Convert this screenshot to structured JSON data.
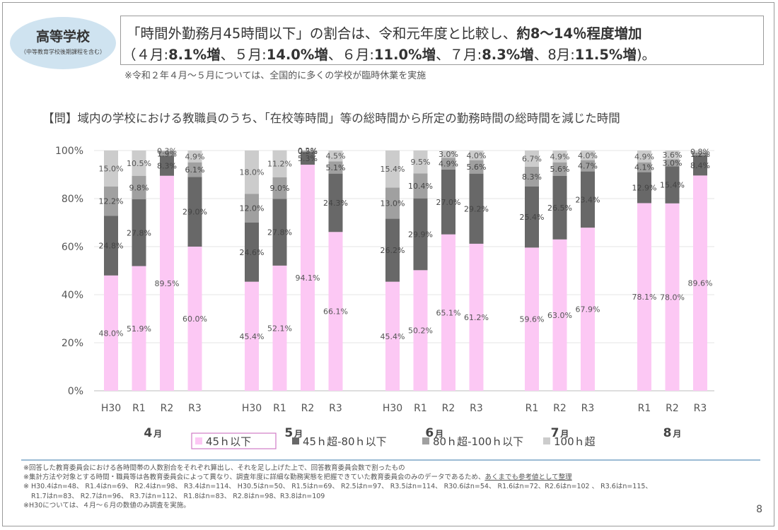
{
  "header": {
    "school": "高等学校",
    "school_sub": "（中等教育学校後期課程を含む）",
    "line1_part1": "「時間外勤務月45時間以下」の割合は、令和元年度と比較し、",
    "line1_part2": "約8～14％程度増加",
    "line2_parts": [
      {
        "text": "（４月:",
        "bold": false
      },
      {
        "text": "8.1%増",
        "bold": true
      },
      {
        "text": "、５月:",
        "bold": false
      },
      {
        "text": "14.0%増",
        "bold": true
      },
      {
        "text": "、６月:",
        "bold": false
      },
      {
        "text": "11.0%増",
        "bold": true
      },
      {
        "text": "、７月:",
        "bold": false
      },
      {
        "text": "8.3%増",
        "bold": true
      },
      {
        "text": "、8月:",
        "bold": false
      },
      {
        "text": "11.5%増",
        "bold": true
      },
      {
        "text": ")。",
        "bold": false
      }
    ],
    "note": "※令和２年４月～５月については、全国的に多くの学校が臨時休業を実施"
  },
  "question": "【問】域内の学校における教職員のうち、「在校等時間」等の総時間から所定の勤務時間の総時間を減じた時間",
  "chart_data": {
    "type": "bar",
    "stacked": true,
    "y_axis": {
      "min": 0,
      "max": 100,
      "ticks": [
        "0%",
        "20%",
        "40%",
        "60%",
        "80%",
        "100%"
      ]
    },
    "colors": [
      "#fcc8f4",
      "#686868",
      "#a0a0a0",
      "#cccccc"
    ],
    "series_names": [
      "45ｈ以下",
      "45ｈ超-80ｈ以下",
      "80ｈ超-100ｈ以下",
      "100ｈ超"
    ],
    "groups": [
      {
        "month": "4",
        "bars": [
          {
            "label": "H30",
            "values": [
              48.0,
              24.8,
              12.2,
              15.0
            ]
          },
          {
            "label": "R1",
            "values": [
              51.9,
              27.8,
              9.8,
              10.5
            ]
          },
          {
            "label": "R2",
            "values": [
              89.5,
              8.3,
              1.9,
              0.3
            ]
          },
          {
            "label": "R3",
            "values": [
              60.0,
              29.0,
              6.1,
              4.9
            ]
          }
        ]
      },
      {
        "month": "5",
        "bars": [
          {
            "label": "H30",
            "values": [
              45.4,
              24.6,
              12.0,
              18.0
            ]
          },
          {
            "label": "R1",
            "values": [
              52.1,
              27.8,
              9.0,
              11.2
            ]
          },
          {
            "label": "R2",
            "values": [
              94.1,
              5.3,
              0.5,
              0.2
            ]
          },
          {
            "label": "R3",
            "values": [
              66.1,
              24.3,
              5.1,
              4.5
            ]
          }
        ]
      },
      {
        "month": "6",
        "bars": [
          {
            "label": "H30",
            "values": [
              45.4,
              26.2,
              13.0,
              15.4
            ]
          },
          {
            "label": "R1",
            "values": [
              50.2,
              29.9,
              10.4,
              9.5
            ]
          },
          {
            "label": "R2",
            "values": [
              65.1,
              27.0,
              4.9,
              3.0
            ]
          },
          {
            "label": "R3",
            "values": [
              61.2,
              29.2,
              5.6,
              4.0
            ]
          }
        ]
      },
      {
        "month": "7",
        "bars": [
          {
            "label": "R1",
            "values": [
              59.6,
              25.4,
              8.3,
              6.7
            ]
          },
          {
            "label": "R2",
            "values": [
              63.0,
              26.5,
              5.6,
              4.9
            ]
          },
          {
            "label": "R3",
            "values": [
              67.9,
              23.4,
              4.7,
              4.0
            ]
          }
        ]
      },
      {
        "month": "8",
        "bars": [
          {
            "label": "R1",
            "values": [
              78.1,
              12.9,
              4.1,
              4.9
            ]
          },
          {
            "label": "R2",
            "values": [
              78.0,
              15.4,
              3.0,
              3.6
            ]
          },
          {
            "label": "R3",
            "values": [
              89.6,
              8.4,
              1.2,
              0.8
            ]
          }
        ]
      }
    ],
    "month_suffix": "月"
  },
  "footnotes": {
    "line1": "※回答した教育委員会における各時間帯の人数割合をそれぞれ算出し、それを足し上げた上で、回答教育委員会数で割ったもの",
    "line2_main": "※集計方法や対象とする時間・職員等は各教育委員会によって異なり、調査年度に詳細な勤務実態を把握できていた教育委員会のみのデータであるため、",
    "line2_underline": "あくまでも参考値として整理",
    "line3": "※ H30.4はn=48、 R1.4はn=69、 R2.4はn=98、 R3.4はn=114、 H30.5はn=50、 R1.5はn=69、 R2.5はn=97、 R3.5はn=114、 R30.6はn=54、 R1.6はn=72、R2.6はn=102 、 R3.6はn=115、",
    "line4": "R1.7はn=83、 R2.7はn=96、 R3.7はn=112、 R1.8はn=83、 R2.8はn=98、R3.8はn=109",
    "line5": "※H30については、４月～６月の数値のみ調査を実施。"
  },
  "page_number": "8"
}
